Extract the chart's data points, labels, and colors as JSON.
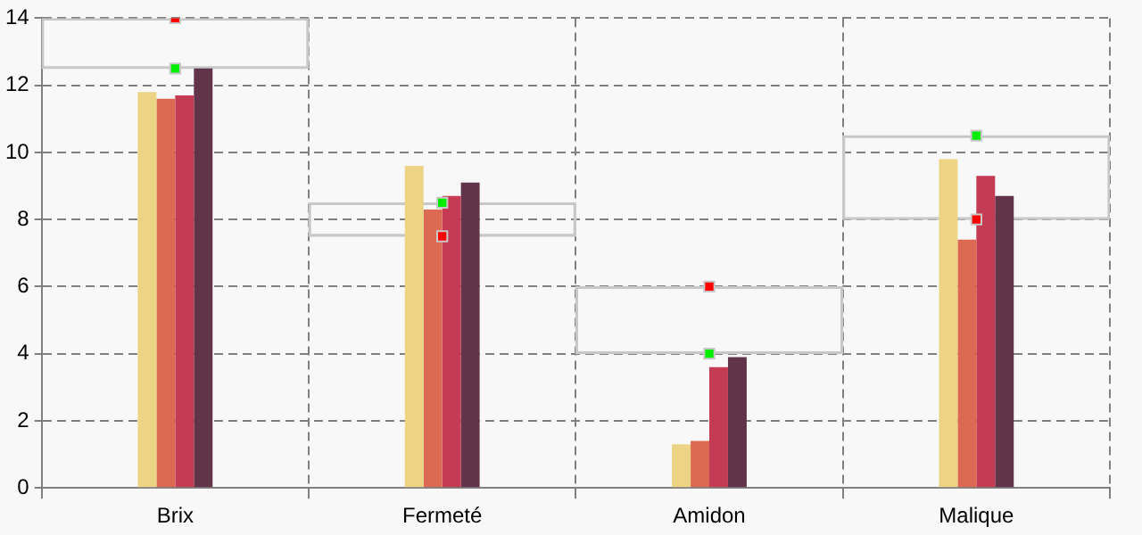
{
  "chart_data": {
    "type": "bar",
    "categories": [
      "Brix",
      "Fermeté",
      "Amidon",
      "Malique"
    ],
    "series": [
      {
        "color": "#edd484",
        "values": [
          11.8,
          9.6,
          1.3,
          9.8
        ]
      },
      {
        "color": "#dc6a52",
        "values": [
          11.6,
          8.3,
          1.4,
          7.4
        ]
      },
      {
        "color": "#c43c54",
        "values": [
          11.7,
          8.7,
          3.6,
          9.3
        ]
      },
      {
        "color": "#62344a",
        "values": [
          12.5,
          9.1,
          3.9,
          8.7
        ]
      },
      {
        "color": "#c8c8c8",
        "base": [
          12.5,
          7.5,
          4,
          8
        ],
        "values": [
          1.5,
          1,
          2,
          2.5
        ]
      },
      {
        "type": "scatter",
        "color": "#00ee00",
        "x": [
          "Brix",
          "Fermeté",
          "Amidon",
          "Malique"
        ],
        "values": [
          12.5,
          8.5,
          4,
          10.5
        ]
      },
      {
        "type": "scatter",
        "color": "#ff0000",
        "x": [
          "Brix",
          "Fermeté",
          "Amidon",
          "Malique"
        ],
        "values": [
          14,
          7.5,
          6,
          8
        ]
      }
    ],
    "ylim": [
      0,
      14
    ],
    "yticks": [
      0,
      2,
      4,
      6,
      8,
      10,
      12,
      14
    ],
    "grid": true,
    "legend": false,
    "marker": "square",
    "line_style": "dashed"
  }
}
